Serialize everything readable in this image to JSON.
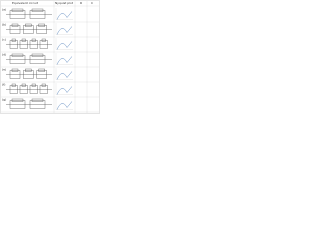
{
  "header": {
    "circuit": "Equivalent circuit",
    "plot": "Nyquist plot",
    "col1": "R",
    "col2": "C"
  },
  "rows": [
    {
      "label": "(a)"
    },
    {
      "label": "(b)"
    },
    {
      "label": "(c)"
    },
    {
      "label": "(d)"
    },
    {
      "label": "(e)"
    },
    {
      "label": "(f)"
    },
    {
      "label": "(g)"
    }
  ]
}
